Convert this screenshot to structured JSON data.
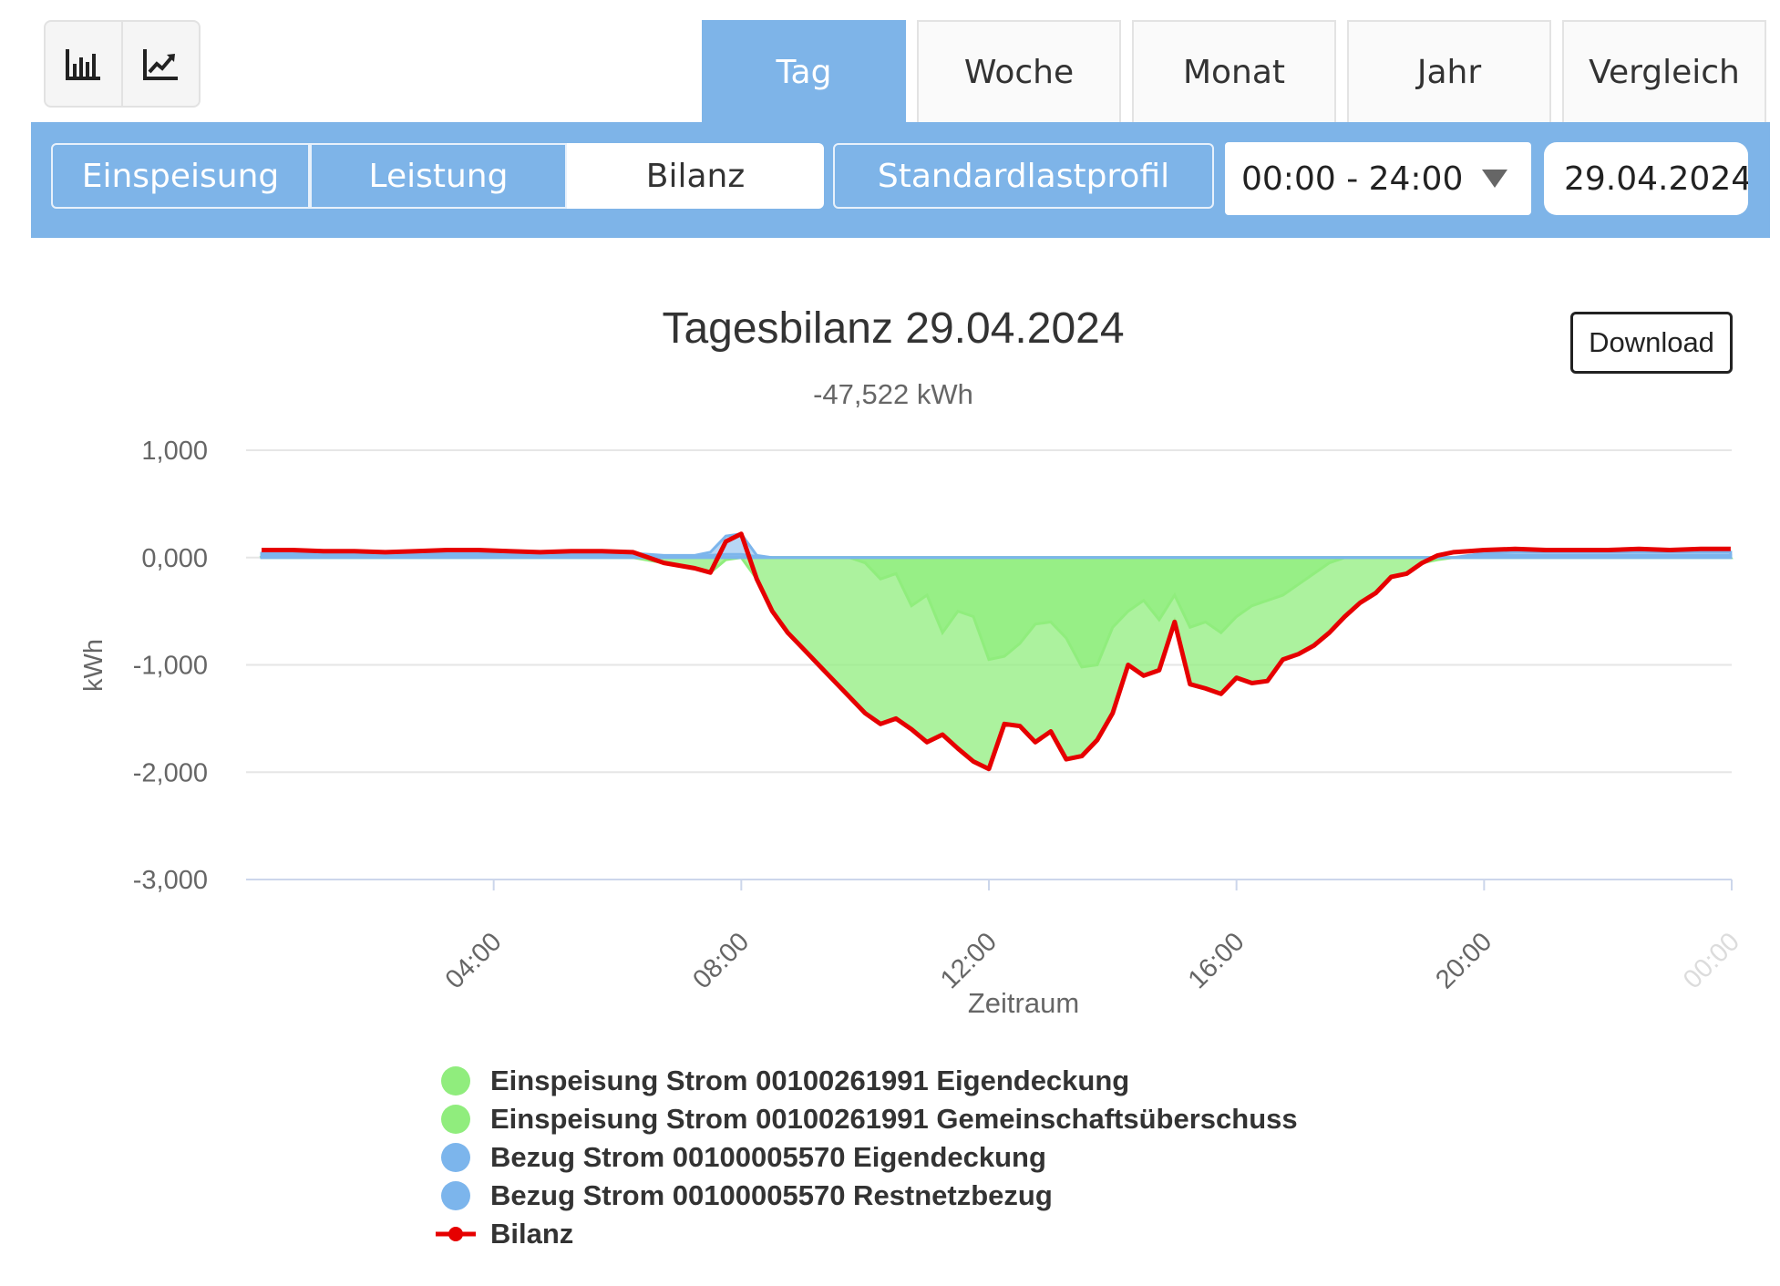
{
  "view_toggle": {
    "items": [
      {
        "icon": "bar-chart-icon"
      },
      {
        "icon": "line-chart-icon"
      }
    ]
  },
  "period_tabs": [
    {
      "label": "Tag",
      "active": true
    },
    {
      "label": "Woche",
      "active": false
    },
    {
      "label": "Monat",
      "active": false
    },
    {
      "label": "Jahr",
      "active": false
    },
    {
      "label": "Vergleich",
      "active": false
    }
  ],
  "mode_tabs": [
    {
      "label": "Einspeisung",
      "selected": false
    },
    {
      "label": "Leistung",
      "selected": false
    },
    {
      "label": "Bilanz",
      "selected": true
    }
  ],
  "slp_button": {
    "label": "Standardlastprofil"
  },
  "time_range": {
    "value": "00:00 - 24:00"
  },
  "date": {
    "value": "29.04.2024"
  },
  "download": {
    "label": "Download"
  },
  "colors": {
    "accent": "#7eb4e8",
    "green": "#90ed7d",
    "blue": "#7cb5ec",
    "red": "#e60000"
  },
  "chart_data": {
    "type": "area",
    "title": "Tagesbilanz 29.04.2024",
    "subtitle": "-47,522 kWh",
    "xlabel": "Zeitraum",
    "ylabel": "kWh",
    "ylim": [
      -3,
      1
    ],
    "yticks": [
      "1,000",
      "0,000",
      "-1,000",
      "-2,000",
      "-3,000"
    ],
    "xticks": [
      "04:00",
      "08:00",
      "12:00",
      "16:00",
      "20:00",
      "00:00"
    ],
    "grid": true,
    "legend_position": "bottom",
    "x": [
      "00:15",
      "00:45",
      "01:15",
      "01:45",
      "02:15",
      "02:45",
      "03:15",
      "03:45",
      "04:15",
      "04:45",
      "05:15",
      "05:45",
      "06:15",
      "06:45",
      "07:15",
      "07:30",
      "07:45",
      "08:00",
      "08:15",
      "08:30",
      "08:45",
      "09:00",
      "09:15",
      "09:30",
      "09:45",
      "10:00",
      "10:15",
      "10:30",
      "10:45",
      "11:00",
      "11:15",
      "11:30",
      "11:45",
      "12:00",
      "12:15",
      "12:30",
      "12:45",
      "13:00",
      "13:15",
      "13:30",
      "13:45",
      "14:00",
      "14:15",
      "14:30",
      "14:45",
      "15:00",
      "15:15",
      "15:30",
      "15:45",
      "16:00",
      "16:15",
      "16:30",
      "16:45",
      "17:00",
      "17:15",
      "17:30",
      "17:45",
      "18:00",
      "18:15",
      "18:30",
      "18:45",
      "19:00",
      "19:15",
      "19:30",
      "19:45",
      "20:00",
      "20:30",
      "21:00",
      "21:30",
      "22:00",
      "22:30",
      "23:00",
      "23:30",
      "23:59"
    ],
    "series": [
      {
        "name": "Einspeisung Strom 00100261991 Eigendeckung",
        "kind": "area",
        "color": "#90ed7d",
        "values": [
          0,
          0,
          0,
          0,
          0,
          0,
          0,
          0,
          0,
          0,
          0,
          0,
          0,
          -0.05,
          -0.1,
          -0.14,
          -0.02,
          0,
          -0.2,
          -0.5,
          -0.7,
          -0.85,
          -1.0,
          -1.15,
          -1.3,
          -1.45,
          -1.55,
          -1.5,
          -1.6,
          -1.72,
          -1.65,
          -1.78,
          -1.9,
          -1.97,
          -1.55,
          -1.57,
          -1.72,
          -1.62,
          -1.88,
          -1.85,
          -1.7,
          -1.45,
          -1.0,
          -1.1,
          -1.05,
          -0.6,
          -1.18,
          -1.22,
          -1.27,
          -1.12,
          -1.17,
          -1.15,
          -0.95,
          -0.9,
          -0.82,
          -0.7,
          -0.55,
          -0.42,
          -0.33,
          -0.18,
          -0.15,
          -0.05,
          -0.02,
          0,
          0,
          0,
          0,
          0,
          0,
          0,
          0,
          0,
          0,
          0
        ]
      },
      {
        "name": "Einspeisung Strom 00100261991 Gemeinschaftsüberschuss",
        "kind": "area",
        "color": "#90ed7d",
        "values": [
          0,
          0,
          0,
          0,
          0,
          0,
          0,
          0,
          0,
          0,
          0,
          0,
          0,
          0,
          0,
          0,
          0,
          0,
          0,
          0,
          0,
          0,
          0,
          0,
          0,
          -0.05,
          -0.2,
          -0.15,
          -0.45,
          -0.35,
          -0.7,
          -0.5,
          -0.55,
          -0.95,
          -0.92,
          -0.8,
          -0.62,
          -0.6,
          -0.75,
          -1.02,
          -1.0,
          -0.65,
          -0.5,
          -0.4,
          -0.58,
          -0.35,
          -0.65,
          -0.6,
          -0.7,
          -0.55,
          -0.45,
          -0.4,
          -0.35,
          -0.25,
          -0.15,
          -0.05,
          0,
          0,
          0,
          0,
          0,
          0,
          0,
          0,
          0,
          0,
          0,
          0,
          0,
          0,
          0,
          0,
          0,
          0
        ]
      },
      {
        "name": "Bezug Strom 00100005570 Eigendeckung",
        "kind": "area",
        "color": "#7cb5ec",
        "values": [
          0.04,
          0.04,
          0.04,
          0.04,
          0.04,
          0.04,
          0.04,
          0.04,
          0.04,
          0.04,
          0.04,
          0.04,
          0.04,
          0.02,
          0.02,
          0.05,
          0.2,
          0.22,
          0.02,
          0,
          0,
          0,
          0,
          0,
          0,
          0,
          0,
          0,
          0,
          0,
          0,
          0,
          0,
          0,
          0,
          0,
          0,
          0,
          0,
          0,
          0,
          0,
          0,
          0,
          0,
          0,
          0,
          0,
          0,
          0,
          0,
          0,
          0,
          0,
          0,
          0,
          0,
          0,
          0,
          0,
          0,
          0,
          0,
          0,
          0.02,
          0.04,
          0.05,
          0.05,
          0.05,
          0.05,
          0.05,
          0.05,
          0.05,
          0.05
        ]
      },
      {
        "name": "Bezug Strom 00100005570 Restnetzbezug",
        "kind": "area",
        "color": "#7cb5ec",
        "values": [
          0.02,
          0.02,
          0.02,
          0.02,
          0.02,
          0.02,
          0.02,
          0.02,
          0.02,
          0.02,
          0.02,
          0.02,
          0.02,
          0.01,
          0.01,
          0.02,
          0.03,
          0.03,
          0.01,
          0,
          0,
          0,
          0,
          0,
          0,
          0,
          0,
          0,
          0,
          0,
          0,
          0,
          0,
          0,
          0,
          0,
          0,
          0,
          0,
          0,
          0,
          0,
          0,
          0,
          0,
          0,
          0,
          0,
          0,
          0,
          0,
          0,
          0,
          0,
          0,
          0,
          0,
          0,
          0,
          0,
          0,
          0,
          0,
          0,
          0.01,
          0.02,
          0.02,
          0.02,
          0.02,
          0.02,
          0.02,
          0.02,
          0.02,
          0.02
        ]
      },
      {
        "name": "Bilanz",
        "kind": "line",
        "color": "#e60000",
        "values": [
          0.07,
          0.07,
          0.06,
          0.06,
          0.05,
          0.06,
          0.07,
          0.07,
          0.06,
          0.05,
          0.06,
          0.06,
          0.05,
          -0.05,
          -0.1,
          -0.14,
          0.15,
          0.22,
          -0.2,
          -0.5,
          -0.7,
          -0.85,
          -1.0,
          -1.15,
          -1.3,
          -1.45,
          -1.55,
          -1.5,
          -1.6,
          -1.72,
          -1.65,
          -1.78,
          -1.9,
          -1.97,
          -1.55,
          -1.57,
          -1.72,
          -1.62,
          -1.88,
          -1.85,
          -1.7,
          -1.45,
          -1.0,
          -1.1,
          -1.05,
          -0.6,
          -1.18,
          -1.22,
          -1.27,
          -1.12,
          -1.17,
          -1.15,
          -0.95,
          -0.9,
          -0.82,
          -0.7,
          -0.55,
          -0.42,
          -0.33,
          -0.18,
          -0.15,
          -0.05,
          0.02,
          0.05,
          0.06,
          0.07,
          0.08,
          0.07,
          0.07,
          0.07,
          0.08,
          0.07,
          0.08,
          0.08
        ]
      }
    ]
  },
  "legend": [
    {
      "label": "Einspeisung Strom 00100261991 Eigendeckung",
      "color": "#90ed7d",
      "symbol": "dot"
    },
    {
      "label": "Einspeisung Strom 00100261991 Gemeinschaftsüberschuss",
      "color": "#90ed7d",
      "symbol": "dot"
    },
    {
      "label": "Bezug Strom 00100005570 Eigendeckung",
      "color": "#7cb5ec",
      "symbol": "dot"
    },
    {
      "label": "Bezug Strom 00100005570 Restnetzbezug",
      "color": "#7cb5ec",
      "symbol": "dot"
    },
    {
      "label": "Bilanz",
      "color": "#e60000",
      "symbol": "line"
    }
  ]
}
